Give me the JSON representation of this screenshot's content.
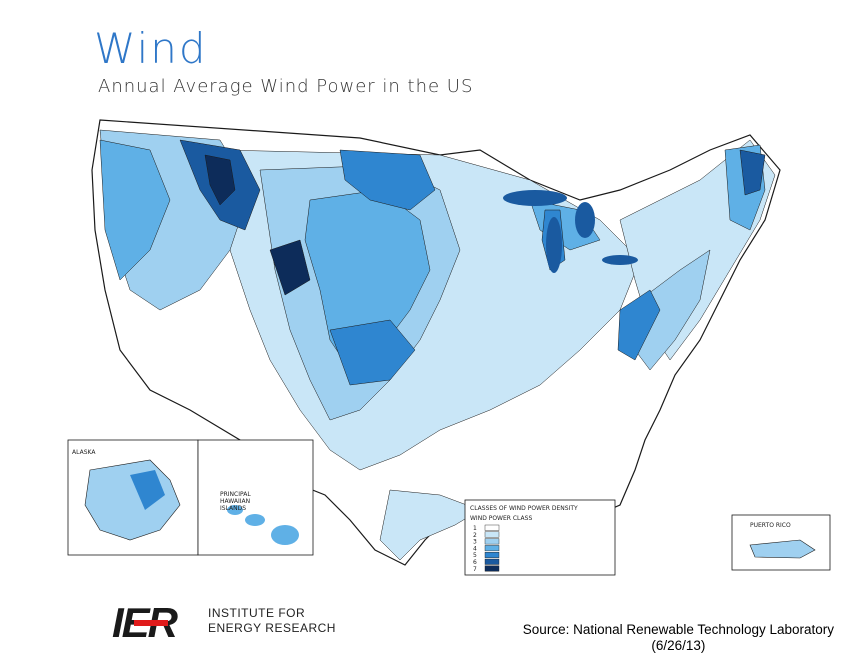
{
  "header": {
    "title": "Wind",
    "subtitle": "Annual Average Wind Power in the US"
  },
  "map": {
    "inset_labels": {
      "alaska": "ALASKA",
      "hawaii_line1": "PRINCIPAL",
      "hawaii_line2": "HAWAIIAN",
      "hawaii_line3": "ISLANDS",
      "puerto_rico": "PUERTO RICO"
    },
    "legend": {
      "title": "CLASSES OF WIND POWER DENSITY",
      "column_header": "WIND POWER CLASS",
      "classes": [
        "1",
        "2",
        "3",
        "4",
        "5",
        "6",
        "7"
      ]
    },
    "colors": {
      "class_1": "#ffffff",
      "class_2": "#c9e6f7",
      "class_3": "#9fd0f0",
      "class_4": "#5fb0e6",
      "class_5": "#2f86d0",
      "class_6": "#1a5aa0",
      "class_7": "#0d2c5a",
      "outline": "#1a1a1a"
    }
  },
  "footer": {
    "logo_mark": "IER",
    "logo_line1": "INSTITUTE FOR",
    "logo_line2": "ENERGY RESEARCH",
    "source_line1": "Source: National Renewable Technology Laboratory",
    "source_line2": "(6/26/13)"
  }
}
